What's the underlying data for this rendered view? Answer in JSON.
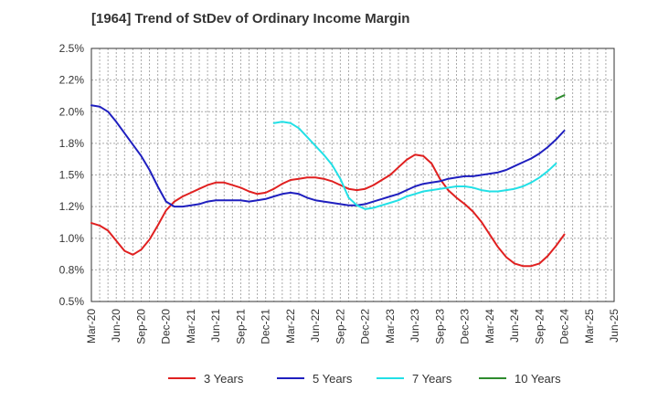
{
  "chart_data": {
    "type": "line",
    "title": "[1964]  Trend of StDev of Ordinary Income Margin",
    "xlabel": "",
    "ylabel": "",
    "ylim": [
      0.5,
      2.5
    ],
    "y_ticks": [
      0.5,
      0.75,
      1.0,
      1.25,
      1.5,
      1.75,
      2.0,
      2.25,
      2.5
    ],
    "y_tick_labels": [
      "0.5%",
      "0.8%",
      "1.0%",
      "1.2%",
      "1.5%",
      "1.8%",
      "2.0%",
      "2.2%",
      "2.5%"
    ],
    "x_tick_labels": [
      "Mar-20",
      "Jun-20",
      "Sep-20",
      "Dec-20",
      "Mar-21",
      "Jun-21",
      "Sep-21",
      "Dec-21",
      "Mar-22",
      "Jun-22",
      "Sep-22",
      "Dec-22",
      "Mar-23",
      "Jun-23",
      "Sep-23",
      "Dec-23",
      "Mar-24",
      "Jun-24",
      "Sep-24",
      "Dec-24",
      "Mar-25",
      "Jun-25"
    ],
    "grid": true,
    "legend_position": "bottom",
    "series": [
      {
        "name": "3 Years",
        "color": "#e02020",
        "start_index": 0,
        "values": [
          1.12,
          1.1,
          1.06,
          0.98,
          0.9,
          0.87,
          0.91,
          0.99,
          1.1,
          1.22,
          1.29,
          1.33,
          1.36,
          1.39,
          1.42,
          1.44,
          1.44,
          1.42,
          1.4,
          1.37,
          1.35,
          1.36,
          1.39,
          1.43,
          1.46,
          1.47,
          1.48,
          1.48,
          1.47,
          1.45,
          1.42,
          1.39,
          1.38,
          1.39,
          1.42,
          1.46,
          1.5,
          1.56,
          1.62,
          1.66,
          1.65,
          1.59,
          1.47,
          1.38,
          1.32,
          1.27,
          1.21,
          1.13,
          1.03,
          0.93,
          0.85,
          0.8,
          0.78,
          0.78,
          0.8,
          0.86,
          0.94,
          1.03
        ]
      },
      {
        "name": "5 Years",
        "color": "#1f1fbf",
        "start_index": 0,
        "values": [
          2.05,
          2.04,
          2.0,
          1.92,
          1.83,
          1.74,
          1.65,
          1.54,
          1.41,
          1.29,
          1.25,
          1.25,
          1.26,
          1.27,
          1.29,
          1.3,
          1.3,
          1.3,
          1.3,
          1.29,
          1.3,
          1.31,
          1.33,
          1.35,
          1.36,
          1.35,
          1.32,
          1.3,
          1.29,
          1.28,
          1.27,
          1.26,
          1.26,
          1.27,
          1.29,
          1.31,
          1.33,
          1.35,
          1.38,
          1.41,
          1.43,
          1.44,
          1.45,
          1.47,
          1.48,
          1.49,
          1.49,
          1.5,
          1.51,
          1.52,
          1.54,
          1.57,
          1.6,
          1.63,
          1.67,
          1.72,
          1.78,
          1.85
        ]
      },
      {
        "name": "7 Years",
        "color": "#22e0e6",
        "start_index": 22,
        "values": [
          1.91,
          1.92,
          1.91,
          1.87,
          1.8,
          1.73,
          1.66,
          1.58,
          1.47,
          1.32,
          1.26,
          1.23,
          1.24,
          1.26,
          1.28,
          1.3,
          1.33,
          1.35,
          1.37,
          1.38,
          1.39,
          1.4,
          1.41,
          1.41,
          1.4,
          1.38,
          1.37,
          1.37,
          1.38,
          1.39,
          1.41,
          1.44,
          1.48,
          1.53,
          1.59
        ]
      },
      {
        "name": "10 Years",
        "color": "#2e8b2e",
        "start_index": 56,
        "values": [
          2.1,
          2.13
        ]
      }
    ]
  }
}
